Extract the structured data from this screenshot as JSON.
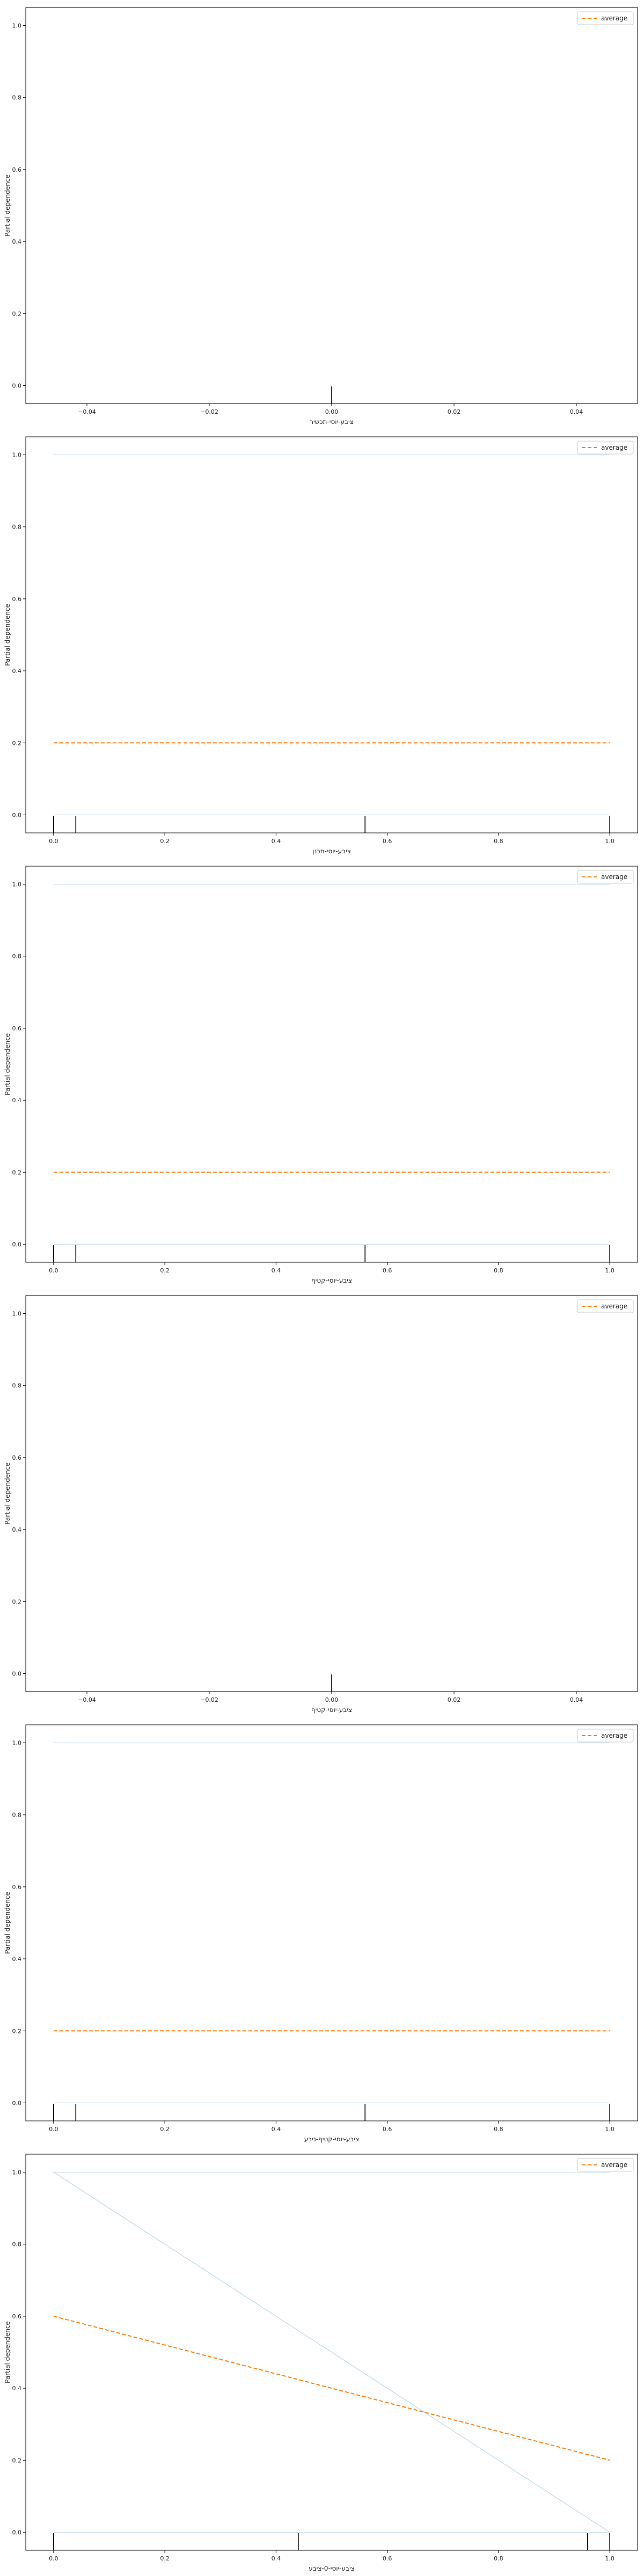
{
  "chart_data": [
    {
      "type": "line",
      "xlabel": "ציבע-יוסי-תכשיר",
      "ylabel": "Partial dependence",
      "legend": {
        "entries": [
          "average"
        ],
        "placement": "top-right"
      },
      "xlim": [
        -0.05,
        0.05
      ],
      "ylim": [
        -0.05,
        1.05
      ],
      "xticks": [
        "−0.04",
        "−0.02",
        "0.00",
        "0.02",
        "0.04"
      ],
      "xtick_values": [
        -0.04,
        -0.02,
        0.0,
        0.02,
        0.04
      ],
      "yticks": [
        "0.0",
        "0.2",
        "0.4",
        "0.6",
        "0.8",
        "1.0"
      ],
      "ytick_values": [
        0.0,
        0.2,
        0.4,
        0.6,
        0.8,
        1.0
      ],
      "ice_lines": [],
      "average": {
        "x": [],
        "y": []
      },
      "rug": [
        0.0
      ],
      "colors": {
        "ice": "#1f77b4",
        "average": "#ff7f0e"
      }
    },
    {
      "type": "line",
      "xlabel": "ציבע-יוסי-תכנן",
      "ylabel": "Partial dependence",
      "legend": {
        "entries": [
          "average"
        ],
        "placement": "top-right"
      },
      "xlim": [
        -0.05,
        1.05
      ],
      "ylim": [
        -0.05,
        1.05
      ],
      "xticks": [
        "0.0",
        "0.2",
        "0.4",
        "0.6",
        "0.8",
        "1.0"
      ],
      "xtick_values": [
        0.0,
        0.2,
        0.4,
        0.6,
        0.8,
        1.0
      ],
      "yticks": [
        "0.0",
        "0.2",
        "0.4",
        "0.6",
        "0.8",
        "1.0"
      ],
      "ytick_values": [
        0.0,
        0.2,
        0.4,
        0.6,
        0.8,
        1.0
      ],
      "ice_lines": [
        {
          "x": [
            0.0,
            1.0
          ],
          "y": [
            0.0,
            0.0
          ]
        },
        {
          "x": [
            0.0,
            1.0
          ],
          "y": [
            1.0,
            1.0
          ]
        }
      ],
      "average": {
        "x": [
          0.0,
          1.0
        ],
        "y": [
          0.2,
          0.2
        ]
      },
      "rug": [
        0.0,
        0.04,
        0.56,
        1.0
      ],
      "colors": {
        "ice": "#1f77b4",
        "average": "#ff7f0e"
      }
    },
    {
      "type": "line",
      "xlabel": "ציבע-יוסי-קטיף",
      "ylabel": "Partial dependence",
      "legend": {
        "entries": [
          "average"
        ],
        "placement": "top-right"
      },
      "xlim": [
        -0.05,
        1.05
      ],
      "ylim": [
        -0.05,
        1.05
      ],
      "xticks": [
        "0.0",
        "0.2",
        "0.4",
        "0.6",
        "0.8",
        "1.0"
      ],
      "xtick_values": [
        0.0,
        0.2,
        0.4,
        0.6,
        0.8,
        1.0
      ],
      "yticks": [
        "0.0",
        "0.2",
        "0.4",
        "0.6",
        "0.8",
        "1.0"
      ],
      "ytick_values": [
        0.0,
        0.2,
        0.4,
        0.6,
        0.8,
        1.0
      ],
      "ice_lines": [
        {
          "x": [
            0.0,
            1.0
          ],
          "y": [
            0.0,
            0.0
          ]
        },
        {
          "x": [
            0.0,
            1.0
          ],
          "y": [
            1.0,
            1.0
          ]
        }
      ],
      "average": {
        "x": [
          0.0,
          1.0
        ],
        "y": [
          0.2,
          0.2
        ]
      },
      "rug": [
        0.0,
        0.04,
        0.56,
        1.0
      ],
      "colors": {
        "ice": "#1f77b4",
        "average": "#ff7f0e"
      }
    },
    {
      "type": "line",
      "xlabel": "ציבע-יוסי-קטיף",
      "ylabel": "Partial dependence",
      "legend": {
        "entries": [
          "average"
        ],
        "placement": "top-right"
      },
      "xlim": [
        -0.05,
        0.05
      ],
      "ylim": [
        -0.05,
        1.05
      ],
      "xticks": [
        "−0.04",
        "−0.02",
        "0.00",
        "0.02",
        "0.04"
      ],
      "xtick_values": [
        -0.04,
        -0.02,
        0.0,
        0.02,
        0.04
      ],
      "yticks": [
        "0.0",
        "0.2",
        "0.4",
        "0.6",
        "0.8",
        "1.0"
      ],
      "ytick_values": [
        0.0,
        0.2,
        0.4,
        0.6,
        0.8,
        1.0
      ],
      "ice_lines": [],
      "average": {
        "x": [],
        "y": []
      },
      "rug": [
        0.0
      ],
      "colors": {
        "ice": "#1f77b4",
        "average": "#ff7f0e"
      }
    },
    {
      "type": "line",
      "xlabel": "ציבע-יוסי-קטיף-ניבע",
      "ylabel": "Partial dependence",
      "legend": {
        "entries": [
          "average"
        ],
        "placement": "top-right"
      },
      "xlim": [
        -0.05,
        1.05
      ],
      "ylim": [
        -0.05,
        1.05
      ],
      "xticks": [
        "0.0",
        "0.2",
        "0.4",
        "0.6",
        "0.8",
        "1.0"
      ],
      "xtick_values": [
        0.0,
        0.2,
        0.4,
        0.6,
        0.8,
        1.0
      ],
      "yticks": [
        "0.0",
        "0.2",
        "0.4",
        "0.6",
        "0.8",
        "1.0"
      ],
      "ytick_values": [
        0.0,
        0.2,
        0.4,
        0.6,
        0.8,
        1.0
      ],
      "ice_lines": [
        {
          "x": [
            0.0,
            1.0
          ],
          "y": [
            0.0,
            0.0
          ]
        },
        {
          "x": [
            0.0,
            1.0
          ],
          "y": [
            1.0,
            1.0
          ]
        }
      ],
      "average": {
        "x": [
          0.0,
          1.0
        ],
        "y": [
          0.2,
          0.2
        ]
      },
      "rug": [
        0.0,
        0.04,
        0.56,
        1.0
      ],
      "colors": {
        "ice": "#1f77b4",
        "average": "#ff7f0e"
      }
    },
    {
      "type": "line",
      "xlabel": "ציבע-יוסי-0-ציבע",
      "ylabel": "Partial dependence",
      "legend": {
        "entries": [
          "average"
        ],
        "placement": "top-right"
      },
      "xlim": [
        -0.05,
        1.05
      ],
      "ylim": [
        -0.05,
        1.05
      ],
      "xticks": [
        "0.0",
        "0.2",
        "0.4",
        "0.6",
        "0.8",
        "1.0"
      ],
      "xtick_values": [
        0.0,
        0.2,
        0.4,
        0.6,
        0.8,
        1.0
      ],
      "yticks": [
        "0.0",
        "0.2",
        "0.4",
        "0.6",
        "0.8",
        "1.0"
      ],
      "ytick_values": [
        0.0,
        0.2,
        0.4,
        0.6,
        0.8,
        1.0
      ],
      "ice_lines": [
        {
          "x": [
            0.0,
            1.0
          ],
          "y": [
            0.0,
            0.0
          ]
        },
        {
          "x": [
            0.0,
            1.0
          ],
          "y": [
            1.0,
            1.0
          ]
        },
        {
          "x": [
            0.0,
            1.0
          ],
          "y": [
            1.0,
            0.0
          ]
        }
      ],
      "average": {
        "x": [
          0.0,
          1.0
        ],
        "y": [
          0.6,
          0.2
        ]
      },
      "rug": [
        0.0,
        0.44,
        0.96,
        1.0
      ],
      "colors": {
        "ice": "#1f77b4",
        "average": "#ff7f0e"
      }
    }
  ]
}
